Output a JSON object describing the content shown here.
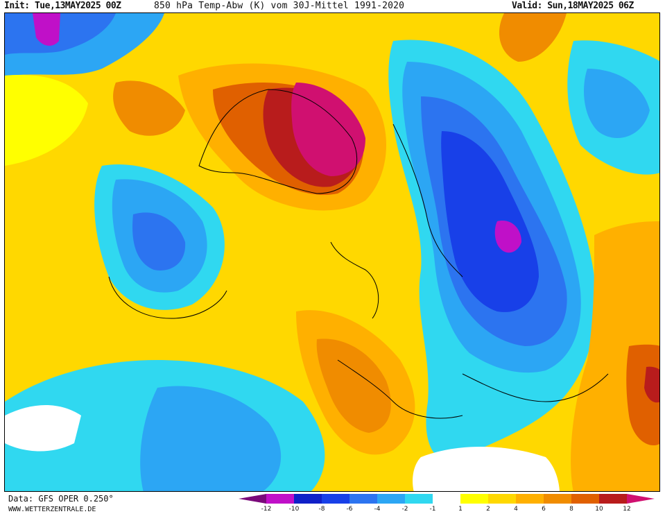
{
  "header": {
    "init": "Init: Tue,13MAY2025 00Z",
    "title": "850 hPa Temp-Abw (K) vom 30J-Mittel 1991-2020",
    "valid": "Valid: Sun,18MAY2025 06Z"
  },
  "footer": {
    "source": "Data: GFS OPER 0.250°",
    "website": "WWW.WETTERZENTRALE.DE"
  },
  "legend": {
    "ticks": [
      "-12",
      "-10",
      "-8",
      "-6",
      "-4",
      "-2",
      "-1",
      "1",
      "2",
      "4",
      "6",
      "8",
      "10",
      "12"
    ],
    "colors": [
      "#7a0a7a",
      "#c010c8",
      "#1020c8",
      "#1840e8",
      "#2c74f0",
      "#2ca6f4",
      "#30d8f0",
      "#ffffff",
      "#ffff00",
      "#ffd800",
      "#ffb000",
      "#f08c00",
      "#e06000",
      "#b81c1c",
      "#d01070"
    ]
  },
  "map": {
    "colors": {
      "strong_neg": "#c010c8",
      "neg10": "#1020c8",
      "neg8": "#1840e8",
      "neg6": "#2c74f0",
      "neg4": "#2ca6f4",
      "neg2": "#30d8f0",
      "neutral": "#ffffff",
      "pos1": "#ffff00",
      "pos2": "#ffd800",
      "pos4": "#ffb000",
      "pos6": "#f08c00",
      "pos8": "#e06000",
      "pos10": "#b81c1c",
      "pos12": "#d01070"
    }
  }
}
